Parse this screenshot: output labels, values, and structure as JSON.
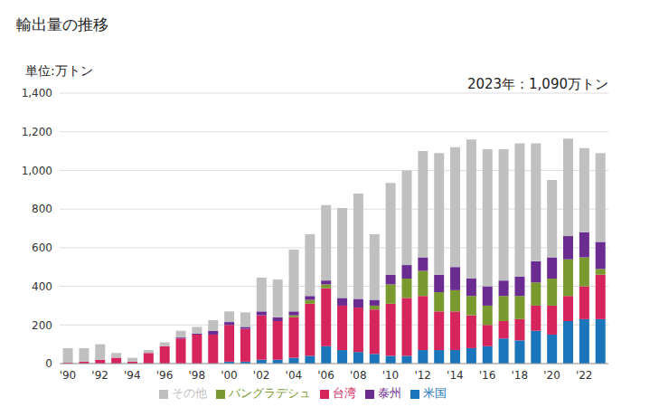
{
  "chart_data": {
    "type": "bar",
    "title": "輸出量の推移",
    "y_label": "単位:万トン",
    "annotation": "2023年：1,090万トン",
    "stacked": true,
    "grid": true,
    "legend": "bottom",
    "categories": [
      "'90",
      null,
      "'92",
      null,
      "'94",
      null,
      "'96",
      null,
      "'98",
      null,
      "'00",
      null,
      "'02",
      null,
      "'04",
      null,
      "'06",
      null,
      "'08",
      null,
      "'10",
      null,
      "'12",
      null,
      "'14",
      null,
      "'16",
      null,
      "'18",
      null,
      "'20",
      null,
      "'22",
      null
    ],
    "ylim": [
      0,
      1400
    ],
    "yticks": [
      0,
      200,
      400,
      600,
      800,
      {
        "value": 1000,
        "label": "1,000"
      },
      {
        "value": 1200,
        "label": "1,200"
      },
      {
        "value": 1400,
        "label": "1,400"
      }
    ],
    "series": [
      {
        "name": "米国",
        "color": "#1a75bb",
        "values": [
          0,
          0,
          0,
          0,
          0,
          0,
          0,
          0,
          0,
          0,
          10,
          10,
          20,
          20,
          30,
          40,
          90,
          70,
          60,
          50,
          40,
          40,
          70,
          70,
          70,
          80,
          90,
          130,
          120,
          170,
          150,
          220,
          230,
          230
        ]
      },
      {
        "name": "台湾",
        "color": "#d6245c",
        "values": [
          5,
          10,
          20,
          30,
          10,
          55,
          90,
          130,
          150,
          150,
          190,
          170,
          230,
          200,
          210,
          270,
          300,
          230,
          230,
          230,
          270,
          300,
          280,
          200,
          200,
          170,
          110,
          90,
          110,
          130,
          150,
          130,
          170,
          230
        ]
      },
      {
        "name": "バングラデシュ",
        "color": "#7a9a2f",
        "values": [
          0,
          0,
          0,
          0,
          0,
          0,
          0,
          0,
          0,
          0,
          0,
          0,
          0,
          0,
          10,
          20,
          20,
          0,
          0,
          20,
          100,
          100,
          130,
          100,
          110,
          100,
          100,
          130,
          120,
          120,
          140,
          190,
          150,
          30
        ]
      },
      {
        "name": "泰州",
        "color": "#6a2c91",
        "values": [
          0,
          0,
          0,
          0,
          0,
          0,
          0,
          5,
          5,
          20,
          15,
          10,
          20,
          20,
          20,
          20,
          20,
          40,
          45,
          30,
          50,
          70,
          70,
          90,
          120,
          90,
          100,
          80,
          100,
          110,
          110,
          120,
          130,
          140
        ]
      },
      {
        "name": "その他",
        "color": "#c0c0c0",
        "values": [
          75,
          70,
          80,
          25,
          20,
          15,
          20,
          35,
          35,
          55,
          55,
          75,
          175,
          195,
          320,
          320,
          390,
          465,
          545,
          340,
          475,
          490,
          550,
          630,
          620,
          720,
          710,
          680,
          690,
          610,
          400,
          505,
          435,
          460
        ]
      }
    ]
  }
}
